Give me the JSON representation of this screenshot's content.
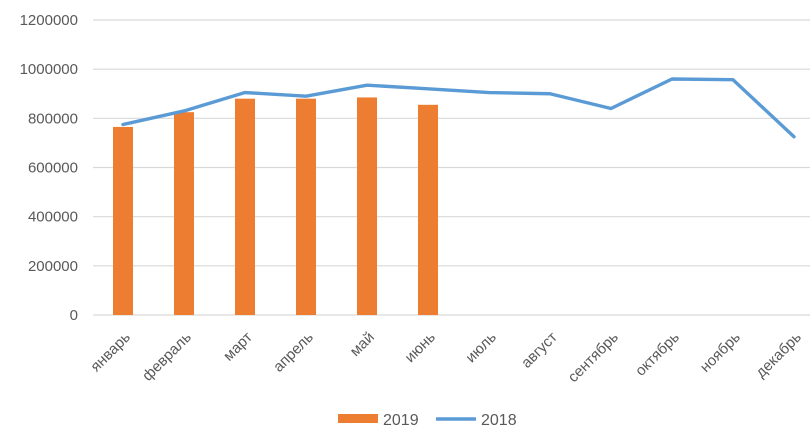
{
  "chart_data": {
    "type": "bar+line",
    "title": "",
    "categories": [
      "январь",
      "февраль",
      "март",
      "апрель",
      "май",
      "июнь",
      "июль",
      "август",
      "сентябрь",
      "октябрь",
      "ноябрь",
      "декабрь"
    ],
    "series": [
      {
        "name": "2019",
        "type": "bar",
        "color": "#ED7D31",
        "values": [
          765000,
          825000,
          880000,
          880000,
          885000,
          855000,
          null,
          null,
          null,
          null,
          null,
          null
        ]
      },
      {
        "name": "2018",
        "type": "line",
        "color": "#5B9BD5",
        "values": [
          775000,
          830000,
          905000,
          890000,
          935000,
          920000,
          905000,
          900000,
          840000,
          960000,
          957000,
          725000
        ]
      }
    ],
    "ylim": [
      0,
      1200000
    ],
    "ytick_step": 200000,
    "ytick_labels": [
      "0",
      "200000",
      "400000",
      "600000",
      "800000",
      "1000000",
      "1200000"
    ],
    "xlabel": "",
    "ylabel": "",
    "grid": true,
    "legend_position": "bottom-center",
    "colors": {
      "text": "#595959",
      "gridline": "#D9D9D9",
      "background": "#FFFFFF"
    }
  }
}
